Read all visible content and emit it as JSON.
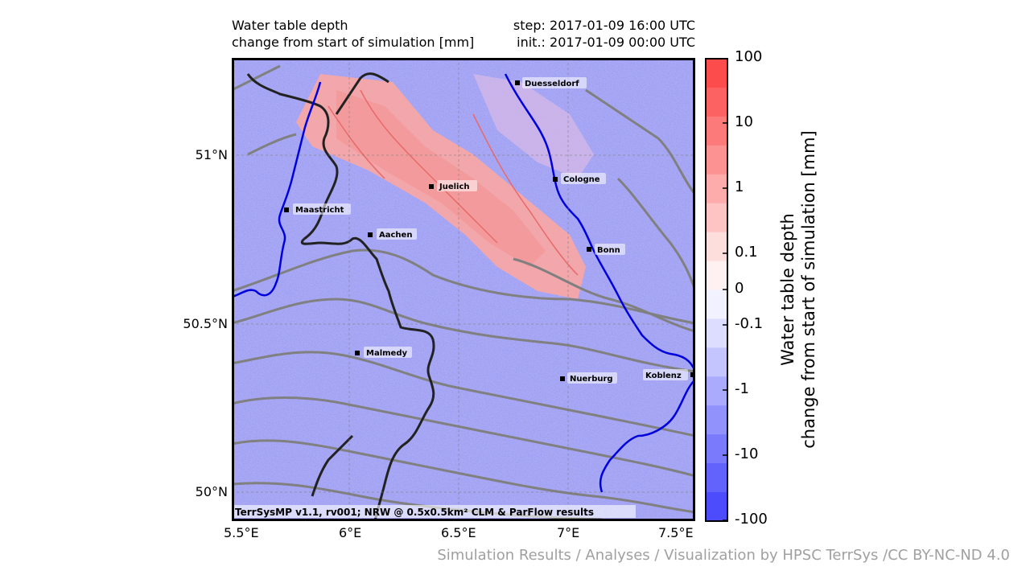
{
  "header": {
    "title_line1": "Water table depth",
    "title_line2": "change from start of simulation [mm]",
    "step": "step: 2017-01-09 16:00 UTC",
    "init": "init.: 2017-01-09 00:00 UTC"
  },
  "map": {
    "lon_ticks": [
      "5.5°E",
      "6°E",
      "6.5°E",
      "7°E",
      "7.5°E"
    ],
    "lat_ticks": [
      "51°N",
      "50.5°N",
      "50°N"
    ],
    "cities": [
      {
        "name": "Duesseldorf",
        "lon": 6.78,
        "lat": 51.22
      },
      {
        "name": "Cologne",
        "lon": 6.95,
        "lat": 50.94
      },
      {
        "name": "Juelich",
        "lon": 6.37,
        "lat": 50.92
      },
      {
        "name": "Maastricht",
        "lon": 5.69,
        "lat": 50.85
      },
      {
        "name": "Aachen",
        "lon": 6.09,
        "lat": 50.77
      },
      {
        "name": "Bonn",
        "lon": 7.1,
        "lat": 50.73
      },
      {
        "name": "Malmedy",
        "lon": 6.03,
        "lat": 50.42
      },
      {
        "name": "Nuerburg",
        "lon": 6.96,
        "lat": 50.34
      },
      {
        "name": "Koblenz",
        "lon": 7.59,
        "lat": 50.36
      }
    ],
    "credit": "TerrSysMP v1.1, rv001; NRW @ 0.5x0.5km² CLM & ParFlow results",
    "colors": {
      "river": "#0000dd",
      "border": "#222222",
      "contour": "#808080",
      "positive": "#ff4d4d",
      "negative": "#4d4dff"
    }
  },
  "colorbar": {
    "ticks": [
      "100",
      "10",
      "1",
      "0.1",
      "0",
      "-0.1",
      "-1",
      "-10",
      "-100"
    ],
    "label_line1": "Water table depth",
    "label_line2": "change from start of simulation [mm]",
    "levels": [
      "#fd4c4c",
      "#fd6262",
      "#fd7a7a",
      "#fd9292",
      "#fdabab",
      "#fec4c4",
      "#fedddd",
      "#fff1f1",
      "#f1f1ff",
      "#ddddff",
      "#c4c4fe",
      "#ababfe",
      "#9292fd",
      "#7a7afd",
      "#6262fd",
      "#4c4cfd"
    ]
  },
  "footer": "Simulation Results / Analyses / Visualization by HPSC TerrSys /CC BY-NC-ND 4.0"
}
